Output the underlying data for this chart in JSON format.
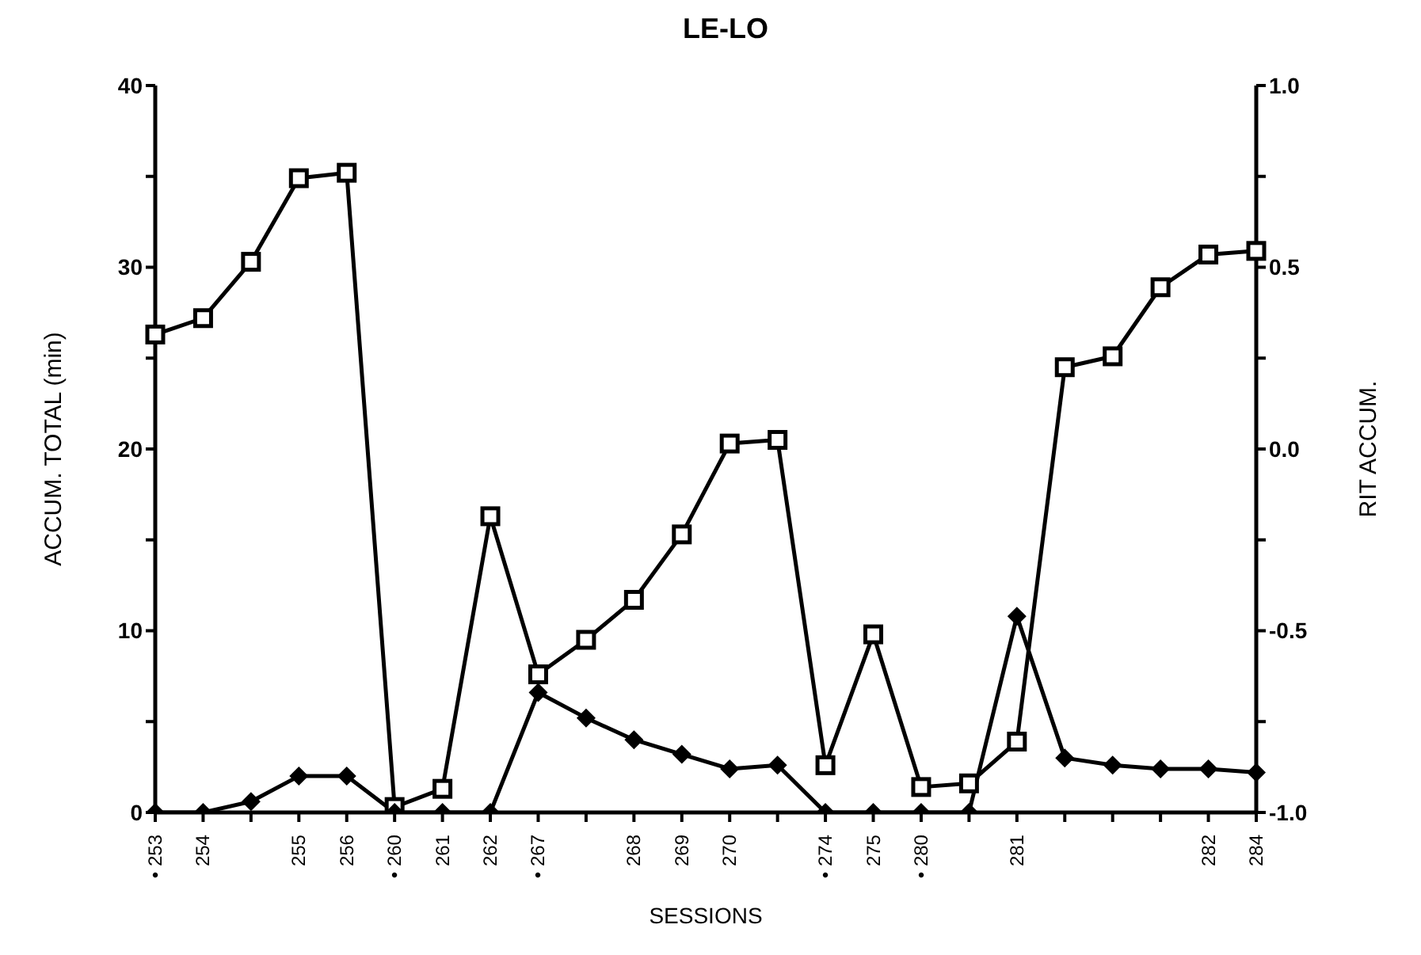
{
  "chart_data": {
    "type": "line",
    "title": "LE-LO",
    "xlabel": "SESSIONS",
    "ylabel": "ACCUM. TOTAL (min)",
    "y2label": "RIT ACCUM.",
    "categories": [
      "• 253",
      "254",
      null,
      "255",
      "256",
      "• 260",
      "261",
      "262",
      "• 267",
      null,
      "268",
      "269",
      "270",
      null,
      "• 274",
      "275",
      "• 280",
      null,
      "281",
      null,
      null,
      null,
      "282",
      "284"
    ],
    "series": [
      {
        "color": "#000000",
        "marker": "square",
        "values": [
          26.3,
          27.2,
          30.3,
          34.9,
          35.2,
          0.3,
          1.3,
          16.3,
          7.6,
          9.5,
          11.7,
          15.3,
          20.3,
          20.5,
          2.6,
          9.8,
          1.4,
          1.6,
          3.9,
          24.5,
          25.1,
          28.9,
          30.7,
          30.9
        ]
      },
      {
        "color": "#000000",
        "marker": "diamond",
        "axis": "y2",
        "values": [
          -1.0,
          -1.0,
          -0.97,
          -0.9,
          -0.9,
          -1.0,
          -1.0,
          -1.0,
          -0.67,
          -0.74,
          -0.8,
          -0.84,
          -0.88,
          -0.87,
          -1.0,
          -1.0,
          -1.0,
          -1.0,
          -0.46,
          -0.85,
          -0.87,
          -0.88,
          -0.88,
          -0.89
        ]
      }
    ],
    "ylim": [
      0,
      40
    ],
    "yticks": [
      0,
      {
        "value": 5,
        "label": null
      },
      10,
      {
        "value": 15,
        "label": null
      },
      20,
      {
        "value": 25,
        "label": null
      },
      30,
      {
        "value": 35,
        "label": null
      },
      40
    ],
    "y2lim": [
      -1,
      1
    ],
    "y2ticks": [
      {
        "value": -1,
        "label": "-1.0"
      },
      {
        "value": -0.75,
        "label": null
      },
      {
        "value": -0.5,
        "label": "-0.5"
      },
      {
        "value": -0.25,
        "label": null
      },
      {
        "value": 0,
        "label": "0.0"
      },
      {
        "value": 0.25,
        "label": null
      },
      {
        "value": 0.5,
        "label": "0.5"
      },
      {
        "value": 0.75,
        "label": null
      },
      {
        "value": 1,
        "label": "1.0"
      }
    ],
    "grid": false,
    "legend": false,
    "line_style": "solid"
  }
}
